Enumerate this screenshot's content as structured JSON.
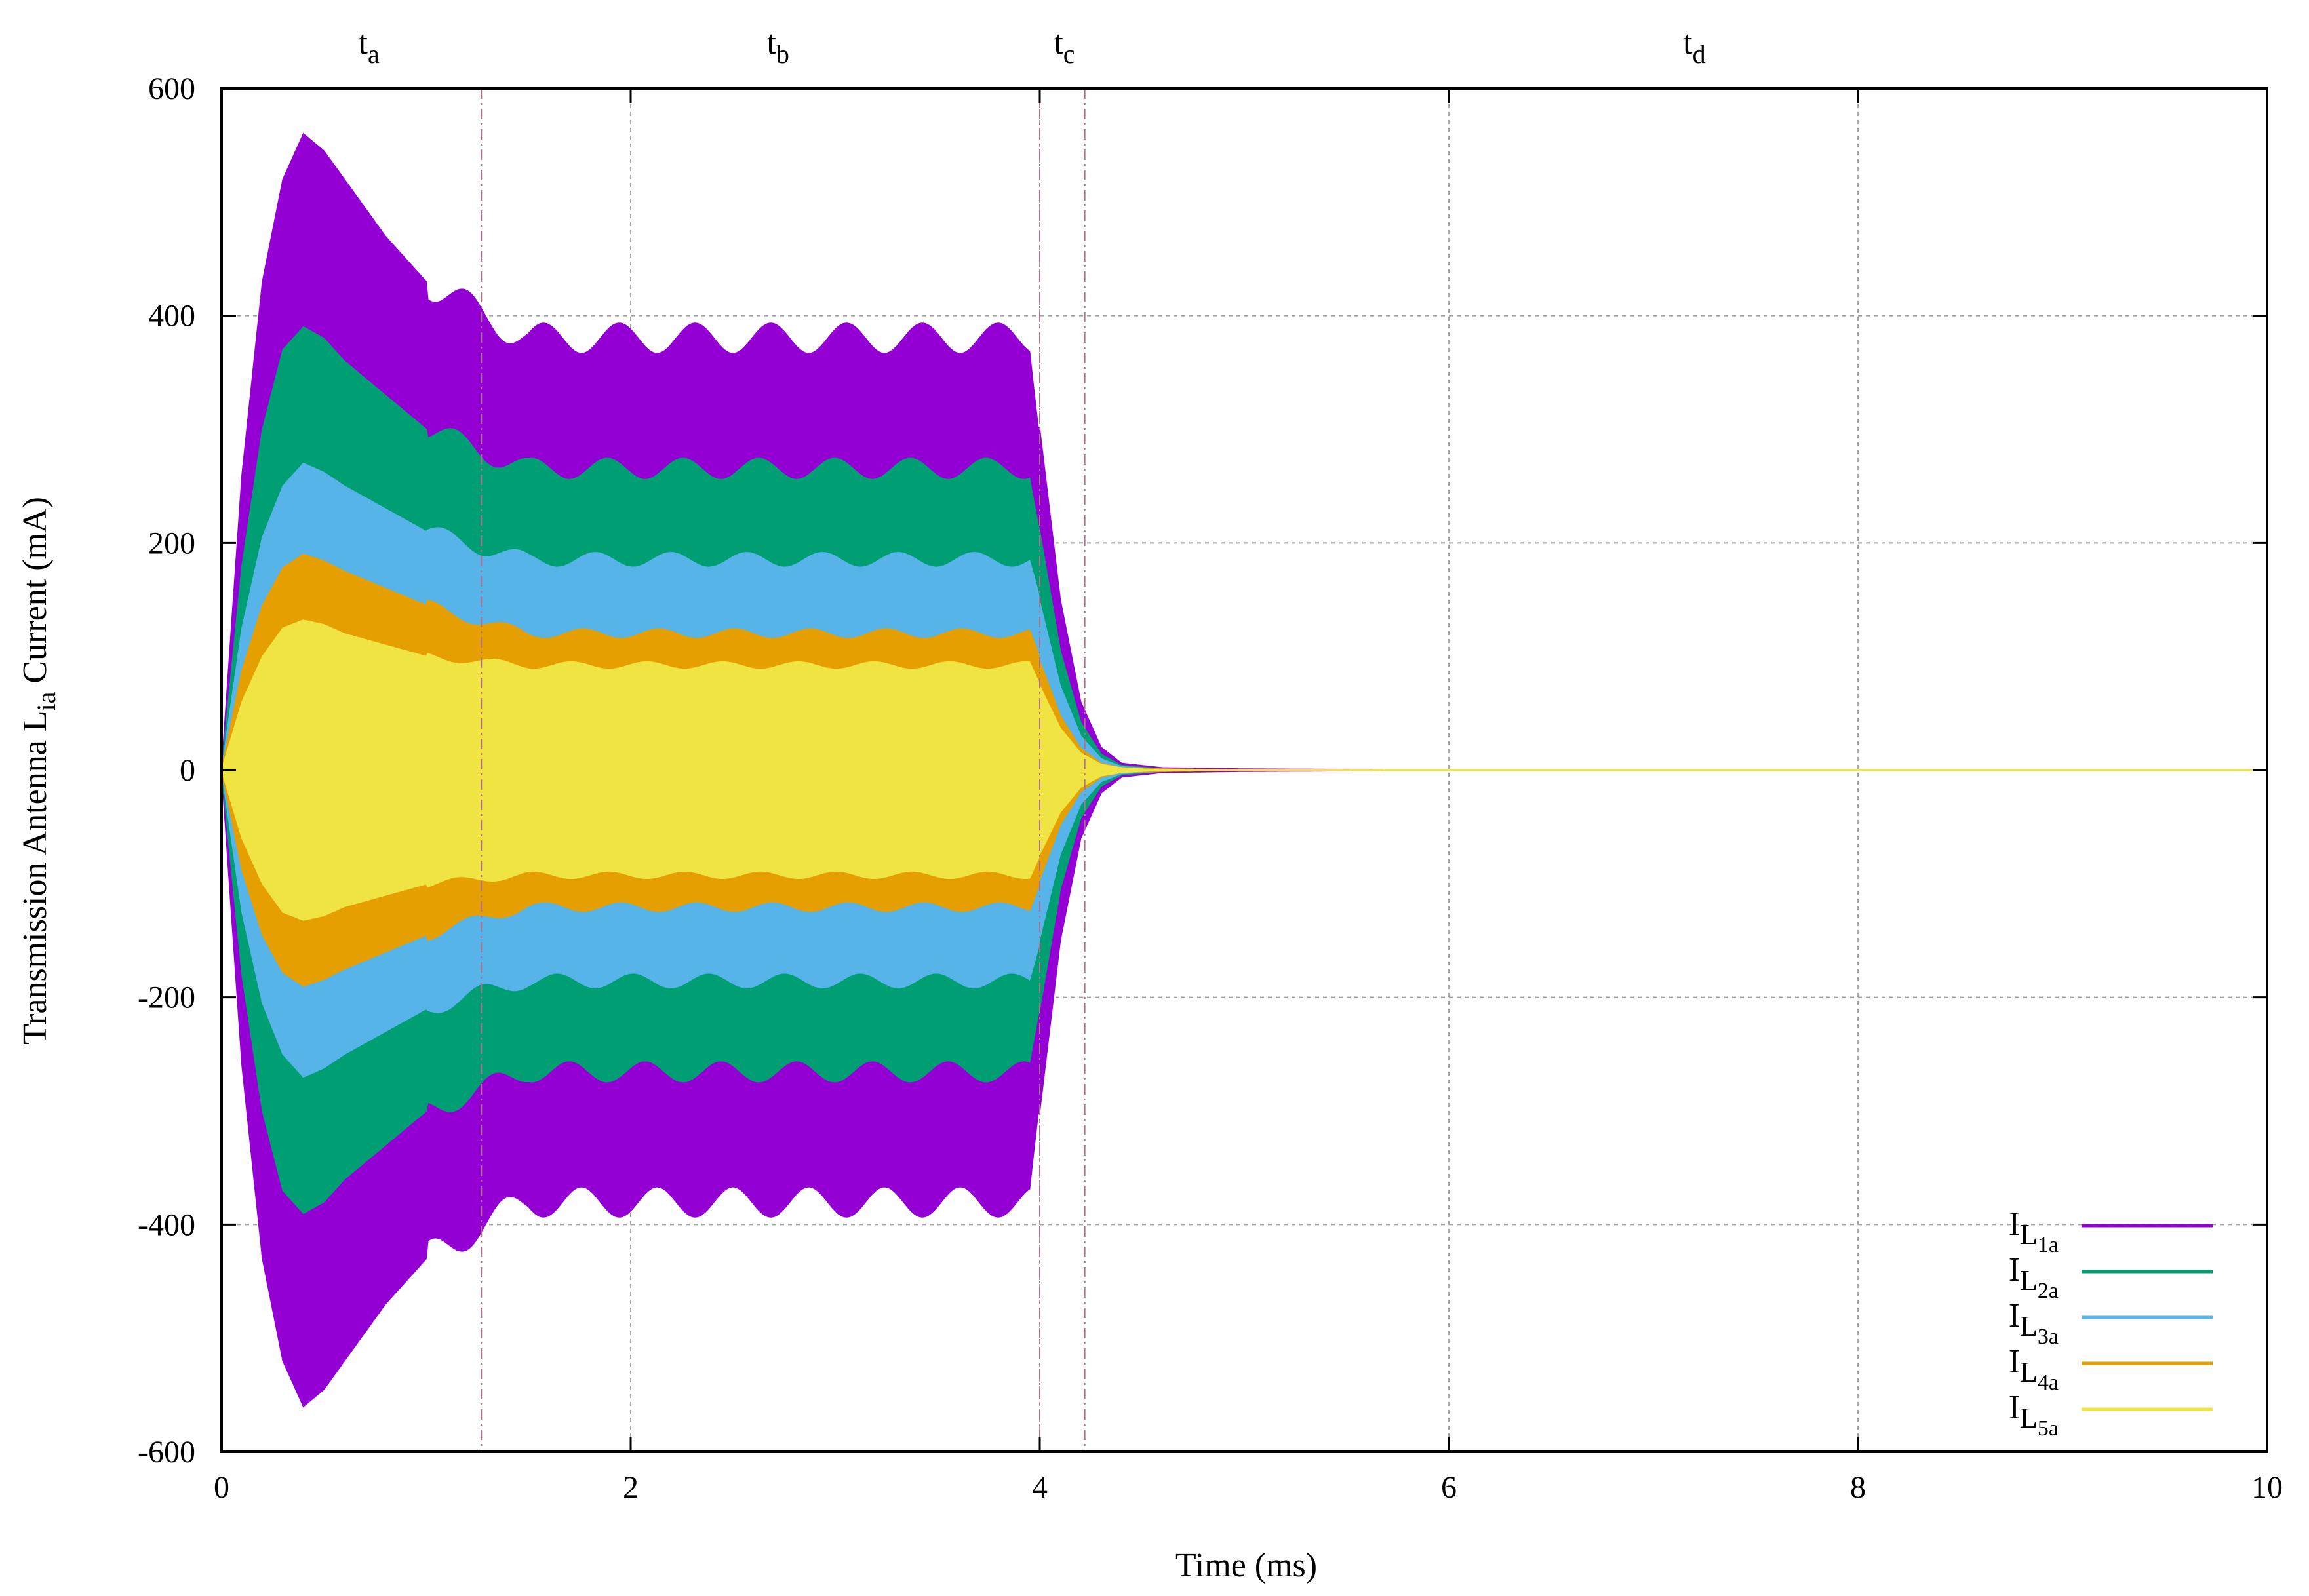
{
  "chart_data": {
    "type": "area",
    "title": "",
    "xlabel": {
      "text": "Time (ms)"
    },
    "ylabel": {
      "prefix": "Transmission Antenna L",
      "subscript": "ia",
      "suffix": " Current (mA)"
    },
    "xlim": [
      0,
      10
    ],
    "ylim": [
      -600,
      600
    ],
    "x_ticks": [
      "0",
      "2",
      "4",
      "6",
      "8",
      "10"
    ],
    "y_ticks": [
      "600",
      "400",
      "200",
      "0",
      "-200",
      "-400",
      "-600"
    ],
    "grid": true,
    "legend_position": "bottom-right",
    "phase_markers": [
      {
        "label": "t",
        "sub": "a",
        "label_x": 0.72
      },
      {
        "label": "t",
        "sub": "b",
        "label_x": 2.72
      },
      {
        "label": "t",
        "sub": "c",
        "label_x": 4.12
      },
      {
        "label": "t",
        "sub": "d",
        "label_x": 7.2
      }
    ],
    "phase_boundaries": [
      1.27,
      4.0,
      4.22
    ],
    "x": [
      0,
      0.1,
      0.2,
      0.3,
      0.4,
      0.5,
      0.6,
      0.8,
      1.0,
      1.27,
      1.5,
      2.0,
      2.5,
      3.0,
      3.5,
      3.95,
      4.0,
      4.1,
      4.2,
      4.3,
      4.4,
      4.6,
      5.0,
      6.0,
      8.0,
      10.0
    ],
    "series": [
      {
        "name": "L",
        "sub": "1a",
        "color": "#9400d3",
        "envelope": [
          0,
          260,
          430,
          520,
          560,
          545,
          520,
          470,
          430,
          400,
          380,
          380,
          380,
          380,
          380,
          380,
          300,
          150,
          60,
          20,
          6,
          2,
          1,
          0,
          0,
          0
        ]
      },
      {
        "name": "L",
        "sub": "2a",
        "color": "#009e73",
        "envelope": [
          0,
          180,
          300,
          370,
          390,
          380,
          360,
          330,
          300,
          280,
          265,
          265,
          265,
          265,
          265,
          265,
          210,
          105,
          42,
          14,
          4,
          1,
          0,
          0,
          0,
          0
        ]
      },
      {
        "name": "L",
        "sub": "3a",
        "color": "#56b4e9",
        "envelope": [
          0,
          125,
          205,
          250,
          270,
          262,
          250,
          230,
          210,
          195,
          185,
          185,
          185,
          185,
          185,
          185,
          148,
          74,
          30,
          10,
          3,
          1,
          0,
          0,
          0,
          0
        ]
      },
      {
        "name": "L",
        "sub": "4a",
        "color": "#e69f00",
        "envelope": [
          0,
          88,
          145,
          178,
          190,
          184,
          175,
          160,
          145,
          130,
          120,
          120,
          120,
          120,
          120,
          120,
          96,
          48,
          19,
          6,
          2,
          1,
          0,
          0,
          0,
          0
        ]
      },
      {
        "name": "L",
        "sub": "5a",
        "color": "#f0e442",
        "envelope": [
          0,
          60,
          100,
          125,
          132,
          128,
          120,
          110,
          100,
          95,
          92,
          92,
          92,
          92,
          92,
          92,
          74,
          37,
          15,
          5,
          2,
          0,
          0,
          0,
          0,
          0
        ]
      }
    ]
  }
}
